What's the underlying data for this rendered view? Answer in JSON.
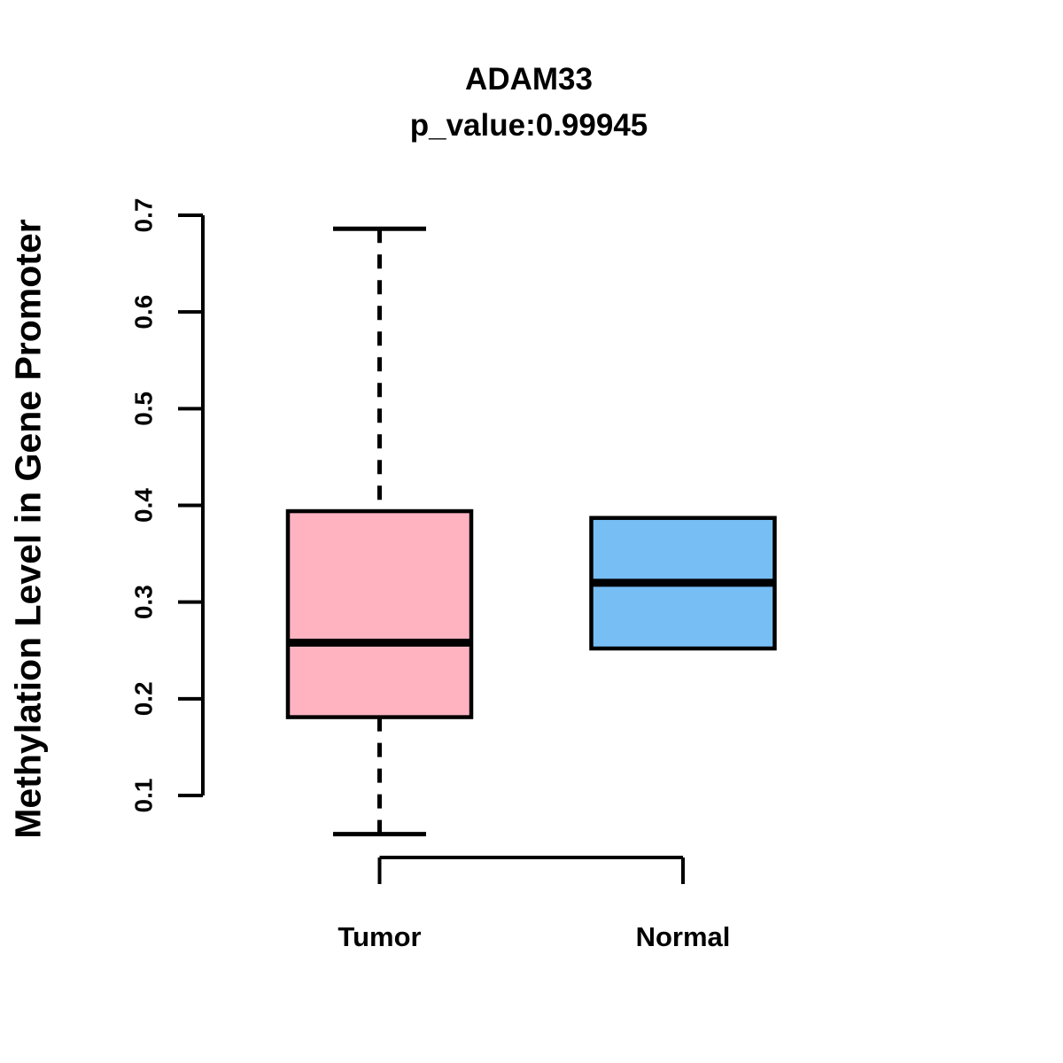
{
  "title": {
    "line1": "ADAM33",
    "line2": "p_value:0.99945"
  },
  "y_axis": {
    "label": "Methylation Level in Gene Promoter",
    "ticks": [
      0.1,
      0.2,
      0.3,
      0.4,
      0.5,
      0.6,
      0.7
    ],
    "tick_labels": [
      "0.1",
      "0.2",
      "0.3",
      "0.4",
      "0.5",
      "0.6",
      "0.7"
    ]
  },
  "chart_data": {
    "type": "boxplot",
    "title": "ADAM33",
    "subtitle": "p_value:0.99945",
    "ylabel": "Methylation Level in Gene Promoter",
    "ylim": [
      0.1,
      0.7
    ],
    "grid": false,
    "categories": [
      "Tumor",
      "Normal"
    ],
    "groups": [
      {
        "label": "Tumor",
        "color": "#FFB3C1",
        "border_color": "#000000",
        "whisker_low": 0.06,
        "q1": 0.181,
        "median": 0.258,
        "q3": 0.394,
        "whisker_high": 0.686
      },
      {
        "label": "Normal",
        "color": "#77BEF5",
        "border_color": "#000000",
        "whisker_low": 0.252,
        "q1": 0.252,
        "median": 0.32,
        "q3": 0.387,
        "whisker_high": 0.387
      }
    ]
  }
}
